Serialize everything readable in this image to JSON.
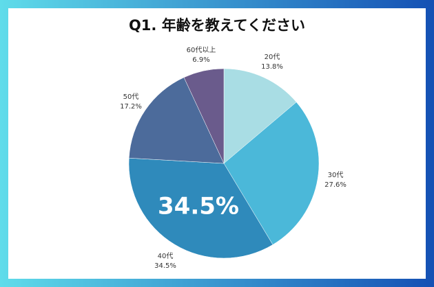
{
  "chart_data": {
    "type": "pie",
    "title": "Q1. 年齢を教えてください",
    "categories": [
      "20代",
      "30代",
      "40代",
      "50代",
      "60代以上"
    ],
    "values": [
      13.8,
      27.6,
      34.5,
      17.2,
      6.9
    ],
    "value_labels": [
      "13.8%",
      "27.6%",
      "34.5%",
      "17.2%",
      "6.9%"
    ],
    "colors": [
      "#a9dde4",
      "#4bb8d9",
      "#2f8abb",
      "#4c6b9b",
      "#6a5b8c"
    ],
    "highlight": 2
  }
}
